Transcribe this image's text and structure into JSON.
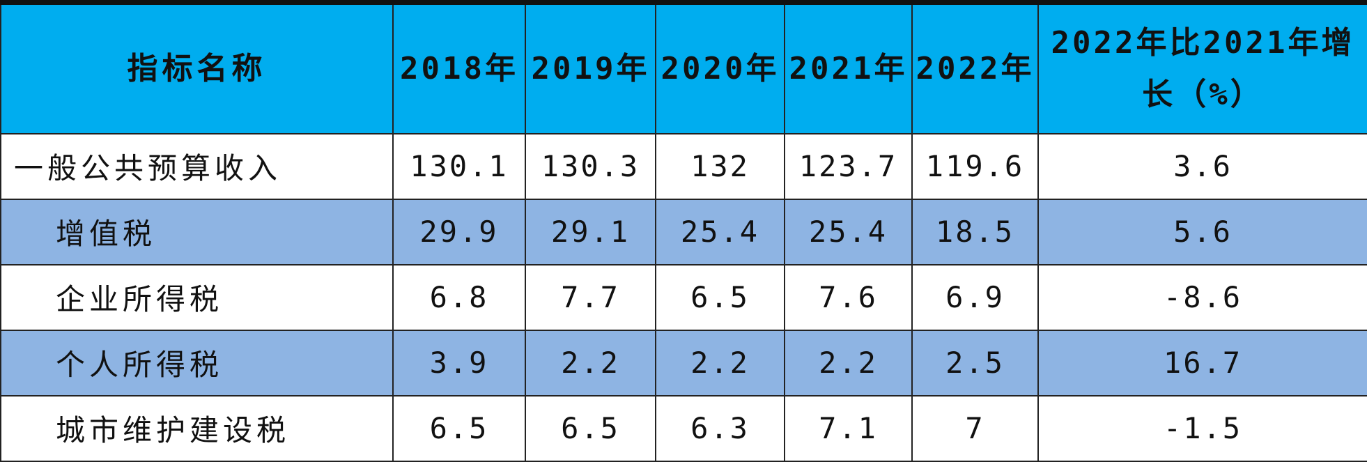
{
  "table": {
    "headers": {
      "name": "指标名称",
      "years": [
        "2018年",
        "2019年",
        "2020年",
        "2021年",
        "2022年"
      ],
      "change": "2022年比2021年增长（%）"
    },
    "rows": [
      {
        "name": "一般公共预算收入",
        "values": [
          "130.1",
          "130.3",
          "132",
          "123.7",
          "119.6"
        ],
        "change": "3.6"
      },
      {
        "name": "增值税",
        "values": [
          "29.9",
          "29.1",
          "25.4",
          "25.4",
          "18.5"
        ],
        "change": "5.6"
      },
      {
        "name": "企业所得税",
        "values": [
          "6.8",
          "7.7",
          "6.5",
          "7.6",
          "6.9"
        ],
        "change": "-8.6"
      },
      {
        "name": "个人所得税",
        "values": [
          "3.9",
          "2.2",
          "2.2",
          "2.2",
          "2.5"
        ],
        "change": "16.7"
      },
      {
        "name": "城市维护建设税",
        "values": [
          "6.5",
          "6.5",
          "6.3",
          "7.1",
          "7"
        ],
        "change": "-1.5"
      }
    ]
  },
  "colors": {
    "header_bg": "#00adef",
    "shaded_row_bg": "#8eb4e3",
    "text": "#111111"
  }
}
